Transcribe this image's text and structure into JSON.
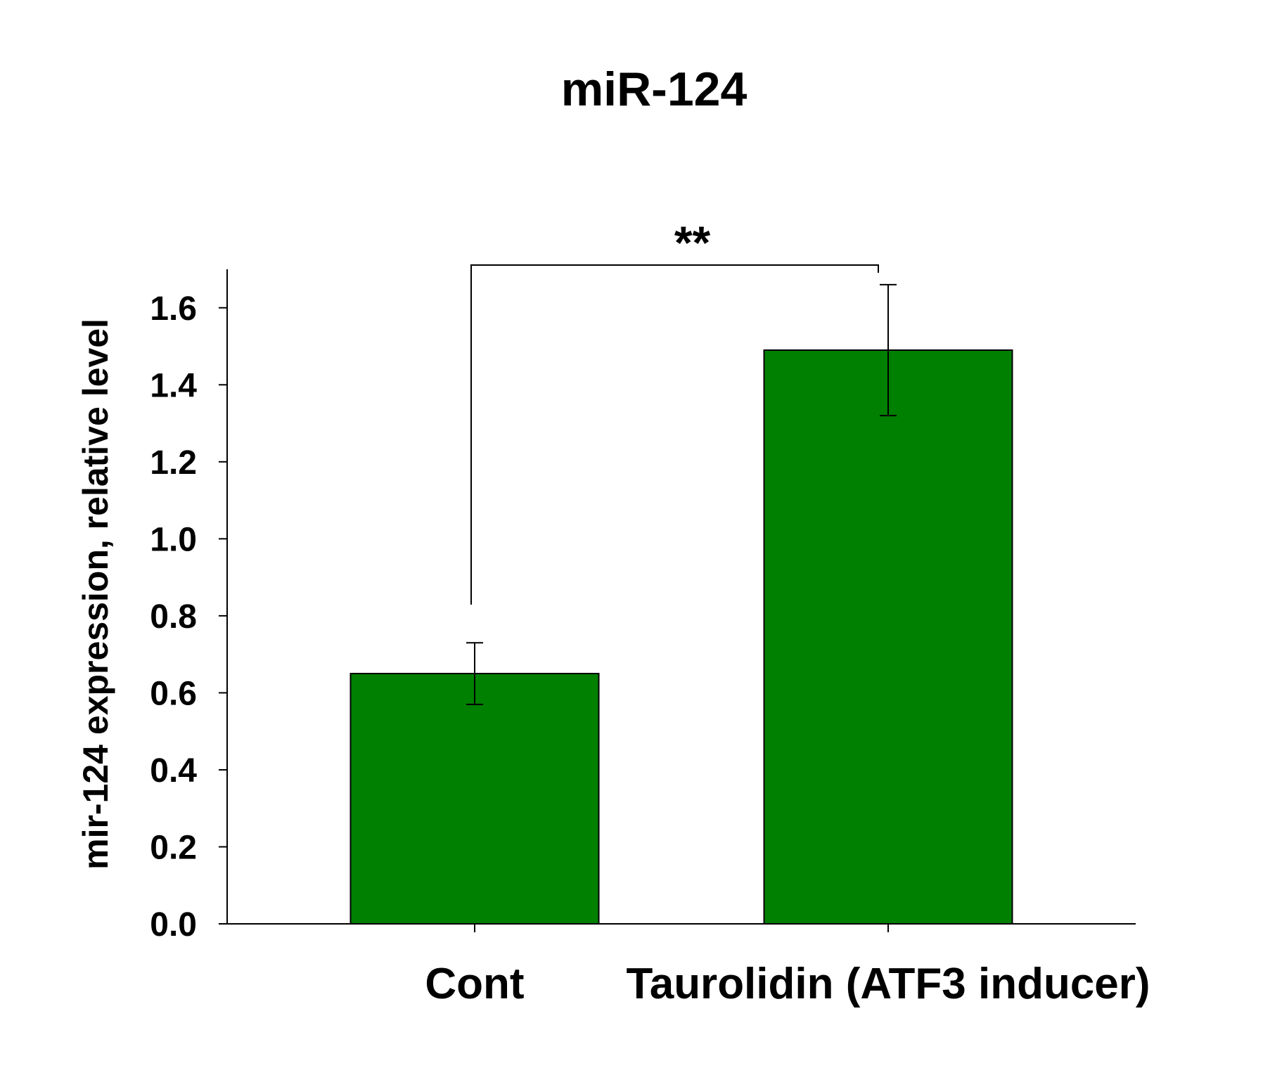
{
  "chart_data": {
    "type": "bar",
    "title": "miR-124",
    "xlabel": "",
    "ylabel": "mir-124 expression, relative level",
    "categories": [
      "Cont",
      "Taurolidin (ATF3 inducer)"
    ],
    "values": [
      0.65,
      1.49
    ],
    "error": [
      0.08,
      0.17
    ],
    "ylim": [
      0,
      1.7
    ],
    "yticks": [
      "0.0",
      "0.2",
      "0.4",
      "0.6",
      "0.8",
      "1.0",
      "1.2",
      "1.4",
      "1.6"
    ],
    "grid": false,
    "bar_color": "#008000",
    "significance": {
      "label": "**",
      "between": [
        0,
        1
      ]
    }
  }
}
